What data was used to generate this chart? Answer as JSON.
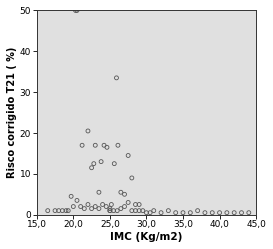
{
  "title": "",
  "xlabel": "IMC (Kg/m2)",
  "ylabel": "Risco corrigido T21 ( %)",
  "xlim": [
    15.0,
    45.0
  ],
  "ylim": [
    0,
    50
  ],
  "xticks": [
    15.0,
    20.0,
    25.0,
    30.0,
    35.0,
    40.0,
    45.0
  ],
  "yticks": [
    0,
    10,
    20,
    30,
    40,
    50
  ],
  "background_color": "#e0e0e0",
  "marker_facecolor": "none",
  "marker_edgecolor": "#555555",
  "marker_size": 8,
  "marker_linewidth": 0.6,
  "x_data": [
    20.3,
    20.5,
    21.2,
    22.0,
    22.5,
    22.8,
    23.0,
    23.5,
    23.8,
    24.2,
    24.6,
    25.0,
    25.2,
    25.6,
    25.9,
    26.1,
    26.5,
    27.0,
    27.5,
    28.0,
    28.5,
    29.0,
    16.5,
    17.5,
    18.0,
    18.5,
    19.0,
    19.3,
    19.7,
    20.0,
    20.5,
    21.0,
    21.5,
    22.0,
    22.5,
    23.0,
    23.5,
    24.0,
    24.5,
    25.0,
    25.0,
    25.5,
    26.0,
    26.5,
    27.0,
    27.5,
    28.0,
    28.5,
    29.0,
    29.5,
    30.0,
    30.5,
    31.0,
    32.0,
    33.0,
    34.0,
    35.0,
    36.0,
    37.0,
    38.0,
    39.0,
    40.0,
    41.0,
    42.0,
    43.0,
    44.0
  ],
  "y_data": [
    50.0,
    50.0,
    17.0,
    20.5,
    11.5,
    12.5,
    17.0,
    5.5,
    13.0,
    17.0,
    16.5,
    1.0,
    2.5,
    12.5,
    33.5,
    17.0,
    5.5,
    5.0,
    14.5,
    9.0,
    2.5,
    2.5,
    1.0,
    1.0,
    1.0,
    1.0,
    1.0,
    1.0,
    4.5,
    2.0,
    3.5,
    2.0,
    1.5,
    2.5,
    1.5,
    2.0,
    1.5,
    2.5,
    2.0,
    1.5,
    1.0,
    1.0,
    1.0,
    1.5,
    2.0,
    3.0,
    1.0,
    1.0,
    1.0,
    1.0,
    0.5,
    0.5,
    1.0,
    0.5,
    1.0,
    0.5,
    0.5,
    0.5,
    1.0,
    0.5,
    0.5,
    0.5,
    0.5,
    0.5,
    0.5,
    0.5
  ]
}
